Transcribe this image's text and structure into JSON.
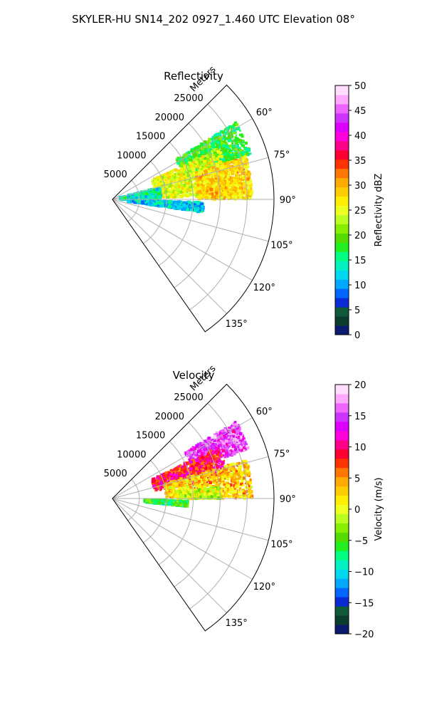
{
  "figure": {
    "title": "SKYLER-HU  SN14_202  0927_1.460 UTC Elevation 08°"
  },
  "chart_data": [
    {
      "type": "heatmap",
      "projection": "polar-sector",
      "title": "Reflectivity",
      "radial_label": "Meters",
      "radial_ticks": [
        5000,
        10000,
        15000,
        20000,
        25000
      ],
      "radial_tick_labels": [
        "5000",
        "10000",
        "15000",
        "20000",
        "25000"
      ],
      "rlim": [
        0,
        30000
      ],
      "azimuth_range_deg": [
        45,
        145
      ],
      "angle_ticks": [
        60,
        75,
        90,
        105,
        120,
        135
      ],
      "angle_tick_labels": [
        "60°",
        "75°",
        "90°",
        "105°",
        "120°",
        "135°"
      ],
      "grid": true,
      "colorbar": {
        "label": "Reflectivity dBZ",
        "range": [
          0,
          50
        ],
        "ticks": [
          0,
          5,
          10,
          15,
          20,
          25,
          30,
          35,
          40,
          45,
          50
        ],
        "tick_labels": [
          "0",
          "5",
          "10",
          "15",
          "20",
          "25",
          "30",
          "35",
          "40",
          "45",
          "50"
        ],
        "colors": [
          "#0a1a6e",
          "#0b3d2e",
          "#0e5a3a",
          "#0a2ad6",
          "#0066ff",
          "#00a8ff",
          "#00d8f0",
          "#00f0c0",
          "#00ff80",
          "#22ee22",
          "#55dd00",
          "#88ee00",
          "#bbff22",
          "#eeff22",
          "#ffee00",
          "#ffcc00",
          "#ffaa00",
          "#ff7700",
          "#ff3300",
          "#ff0033",
          "#ff0088",
          "#ff00dd",
          "#dd00ff",
          "#cc33ff",
          "#ee66ff",
          "#ffaaff",
          "#ffddff"
        ]
      },
      "field_summary": [
        {
          "az_deg": [
            58,
            72
          ],
          "range_m": [
            14000,
            27000
          ],
          "value_dbz": 18
        },
        {
          "az_deg": [
            64,
            88
          ],
          "range_m": [
            8000,
            22000
          ],
          "value_dbz": 25
        },
        {
          "az_deg": [
            72,
            90
          ],
          "range_m": [
            16000,
            26000
          ],
          "value_dbz": 28
        },
        {
          "az_deg": [
            76,
            90
          ],
          "range_m": [
            1500,
            9000
          ],
          "value_dbz": 14
        },
        {
          "az_deg": [
            92,
            98
          ],
          "range_m": [
            3000,
            17000
          ],
          "value_dbz": 12
        }
      ]
    },
    {
      "type": "heatmap",
      "projection": "polar-sector",
      "title": "Velocity",
      "radial_label": "Meters",
      "radial_ticks": [
        5000,
        10000,
        15000,
        20000,
        25000
      ],
      "radial_tick_labels": [
        "5000",
        "10000",
        "15000",
        "20000",
        "25000"
      ],
      "rlim": [
        0,
        30000
      ],
      "azimuth_range_deg": [
        45,
        145
      ],
      "angle_ticks": [
        60,
        75,
        90,
        105,
        120,
        135
      ],
      "angle_tick_labels": [
        "60°",
        "75°",
        "90°",
        "105°",
        "120°",
        "135°"
      ],
      "grid": true,
      "colorbar": {
        "label": "Velocity (m/s)",
        "range": [
          -20,
          20
        ],
        "ticks": [
          -20,
          -15,
          -10,
          -5,
          0,
          5,
          10,
          15,
          20
        ],
        "tick_labels": [
          "−20",
          "−15",
          "−10",
          "−5",
          "0",
          "5",
          "10",
          "15",
          "20"
        ],
        "colors": [
          "#0a1a6e",
          "#0b3d2e",
          "#0e5a3a",
          "#0a2ad6",
          "#0066ff",
          "#00a8ff",
          "#00d8f0",
          "#00f0c0",
          "#00ff80",
          "#22ee22",
          "#55dd00",
          "#88ee00",
          "#bbff22",
          "#eeff22",
          "#ffee00",
          "#ffcc00",
          "#ffaa00",
          "#ff7700",
          "#ff3300",
          "#ff0033",
          "#ff0088",
          "#ff00dd",
          "#dd00ff",
          "#cc33ff",
          "#ee66ff",
          "#ffaaff",
          "#ffddff"
        ]
      },
      "field_summary": [
        {
          "az_deg": [
            58,
            70
          ],
          "range_m": [
            16000,
            27000
          ],
          "value_ms": 15
        },
        {
          "az_deg": [
            64,
            80
          ],
          "range_m": [
            8000,
            22000
          ],
          "value_ms": 9
        },
        {
          "az_deg": [
            74,
            90
          ],
          "range_m": [
            10000,
            26000
          ],
          "value_ms": 3
        },
        {
          "az_deg": [
            84,
            90
          ],
          "range_m": [
            12000,
            20000
          ],
          "value_ms": -1
        },
        {
          "az_deg": [
            92,
            96
          ],
          "range_m": [
            6000,
            14000
          ],
          "value_ms": -6
        }
      ]
    }
  ]
}
